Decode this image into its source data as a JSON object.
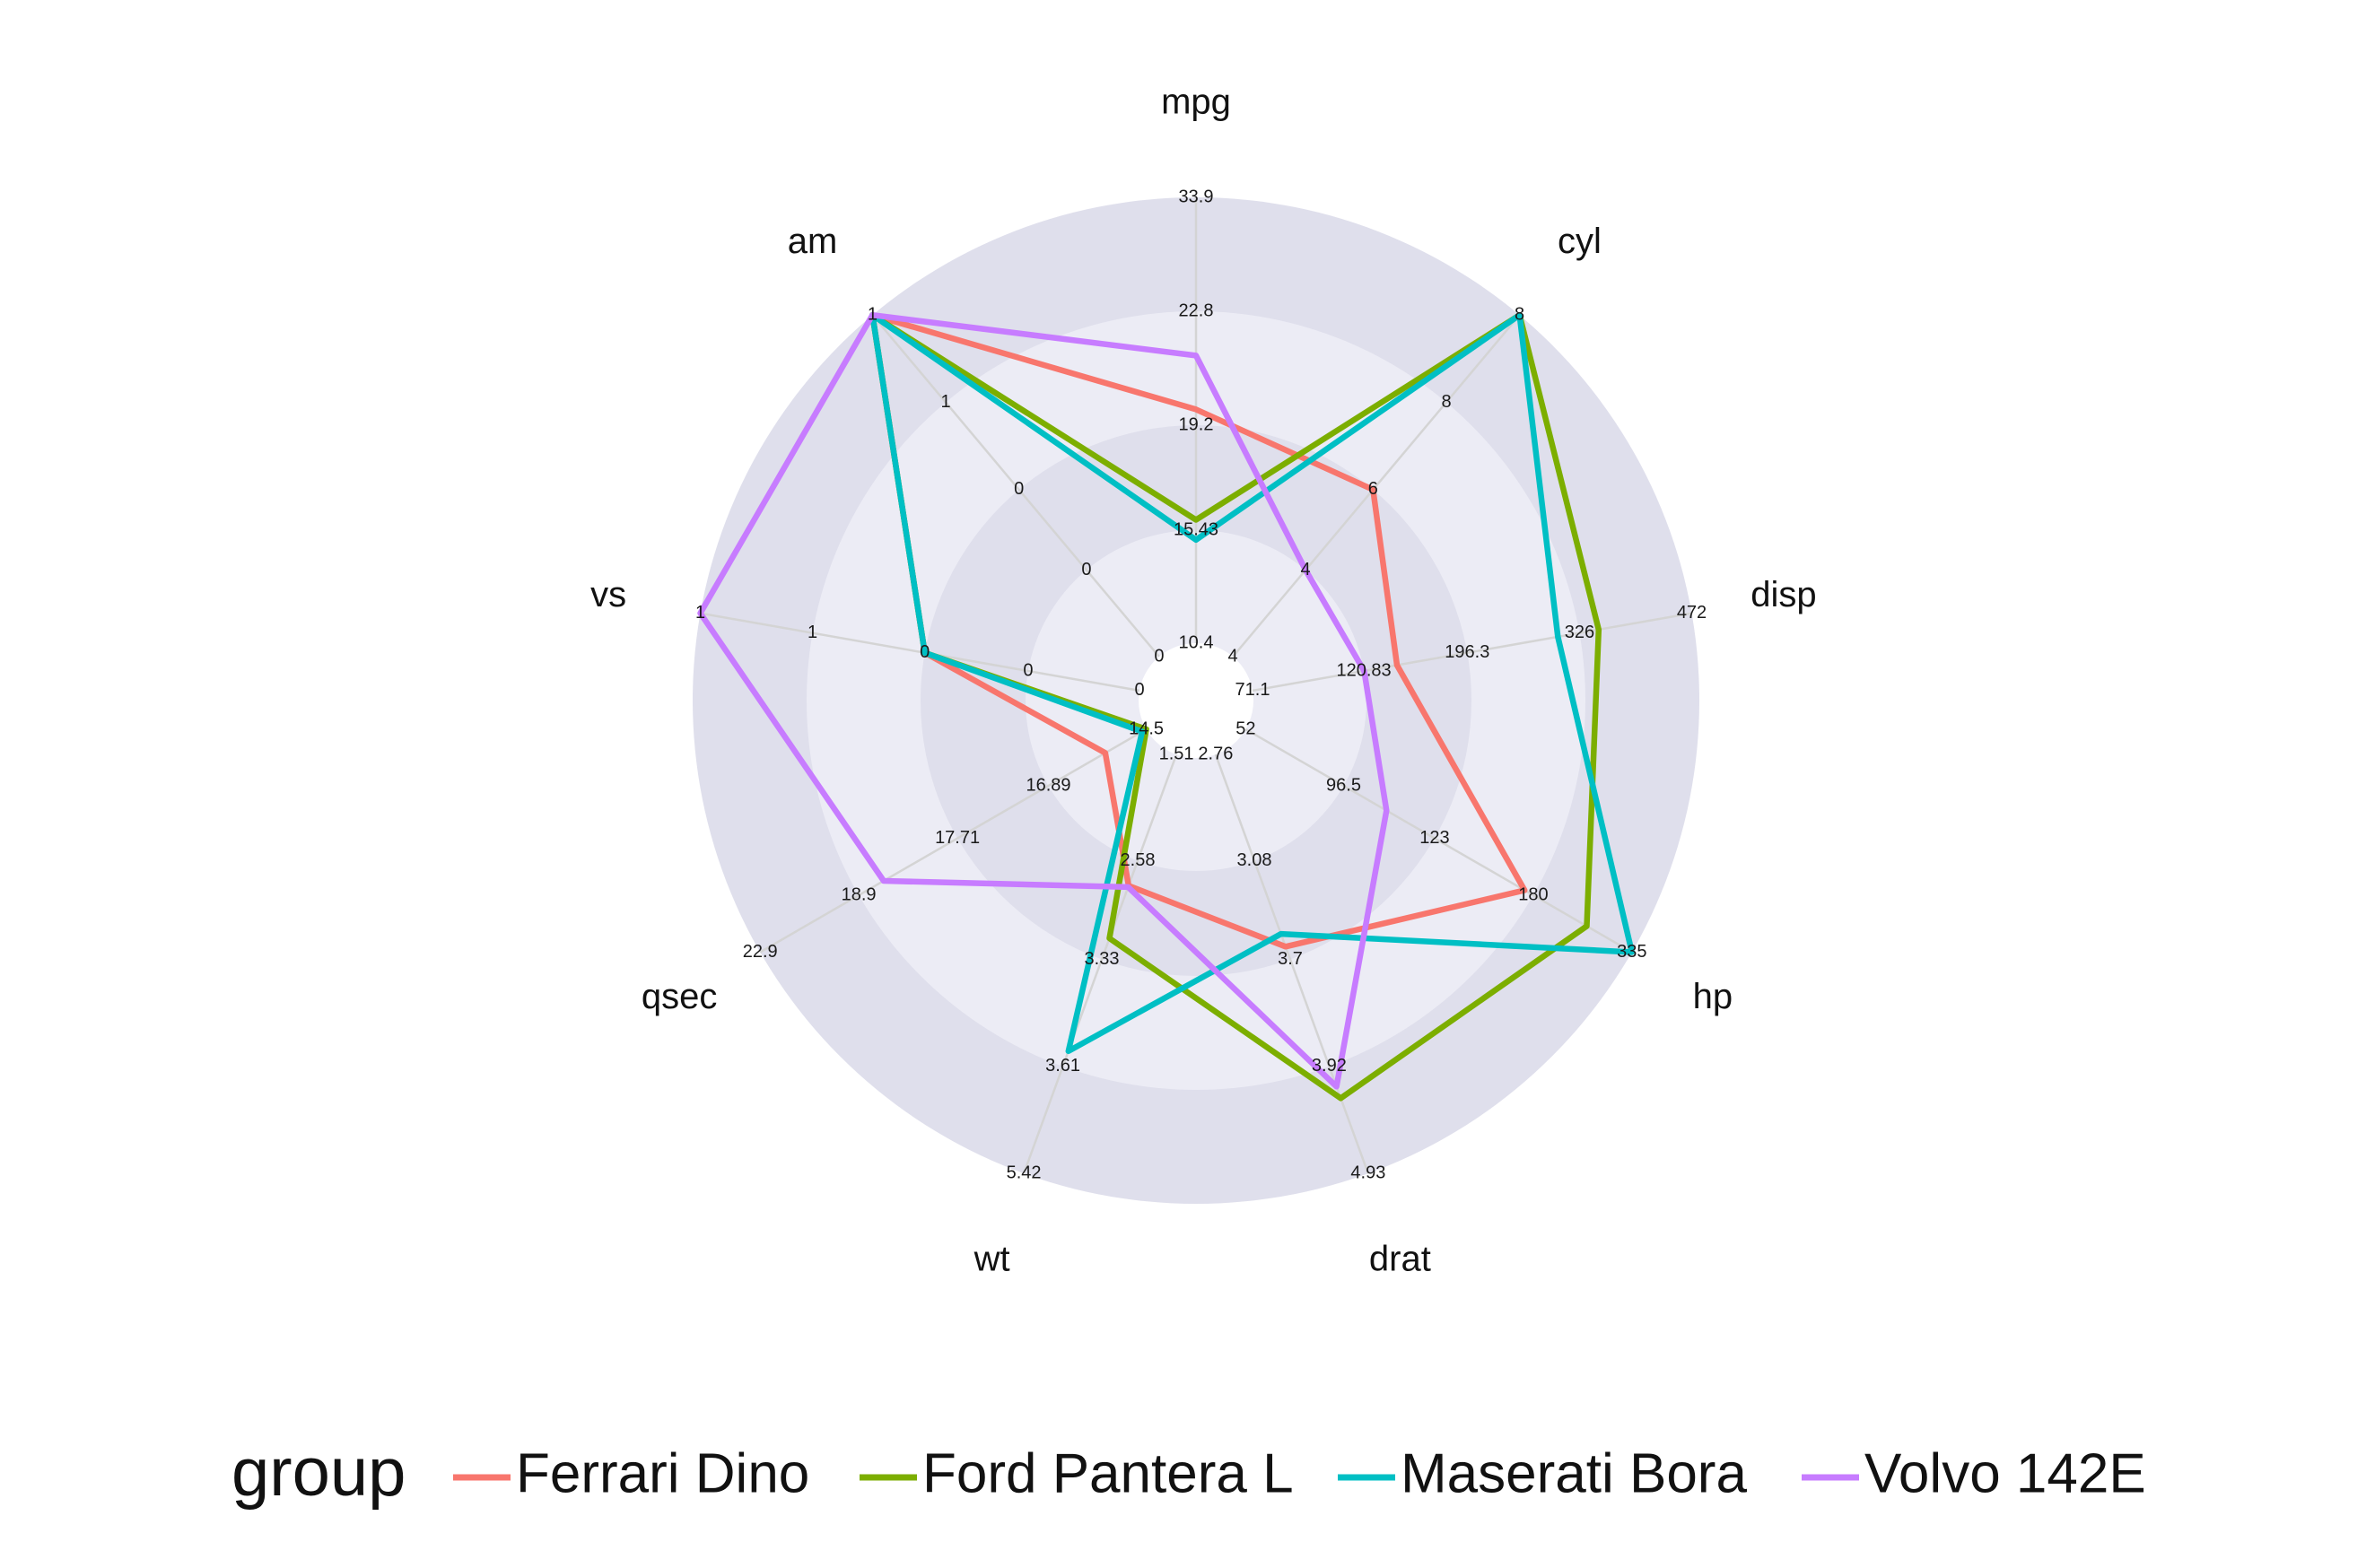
{
  "chart_data": {
    "type": "radar",
    "axes": [
      "mpg",
      "cyl",
      "disp",
      "hp",
      "drat",
      "wt",
      "qsec",
      "vs",
      "am"
    ],
    "axis_ticks": {
      "mpg": [
        "10.4",
        "15.43",
        "19.2",
        "22.8",
        "33.9"
      ],
      "cyl": [
        "4",
        "4",
        "6",
        "8",
        "8"
      ],
      "disp": [
        "71.1",
        "120.83",
        "196.3",
        "326",
        "472"
      ],
      "hp": [
        "52",
        "96.5",
        "123",
        "180",
        "335"
      ],
      "drat": [
        "2.76",
        "3.08",
        "3.7",
        "3.92",
        "4.93"
      ],
      "wt": [
        "1.51",
        "2.58",
        "3.33",
        "3.61",
        "5.42"
      ],
      "qsec": [
        "14.5",
        "16.89",
        "17.71",
        "18.9",
        "22.9"
      ],
      "vs": [
        "0",
        "0",
        "0",
        "1",
        "1"
      ],
      "am": [
        "0",
        "0",
        "0",
        "1",
        "1"
      ]
    },
    "series": [
      {
        "name": "Ferrari Dino",
        "color": "#F8766D",
        "values": [
          19.7,
          6,
          145,
          175,
          3.62,
          2.77,
          15.5,
          0,
          1
        ]
      },
      {
        "name": "Ford Pantera L",
        "color": "#7CAE00",
        "values": [
          15.8,
          8,
          351,
          264,
          4.22,
          3.17,
          14.5,
          0,
          1
        ]
      },
      {
        "name": "Maserati Bora",
        "color": "#00BFC4",
        "values": [
          15.0,
          8,
          301,
          335,
          3.54,
          3.57,
          14.6,
          0,
          1
        ]
      },
      {
        "name": "Volvo 142E",
        "color": "#C77CFF",
        "values": [
          21.4,
          4,
          121,
          109,
          4.11,
          2.78,
          18.6,
          1,
          1
        ]
      }
    ],
    "legend_title": "group",
    "legend_position": "bottom",
    "grid": true
  }
}
